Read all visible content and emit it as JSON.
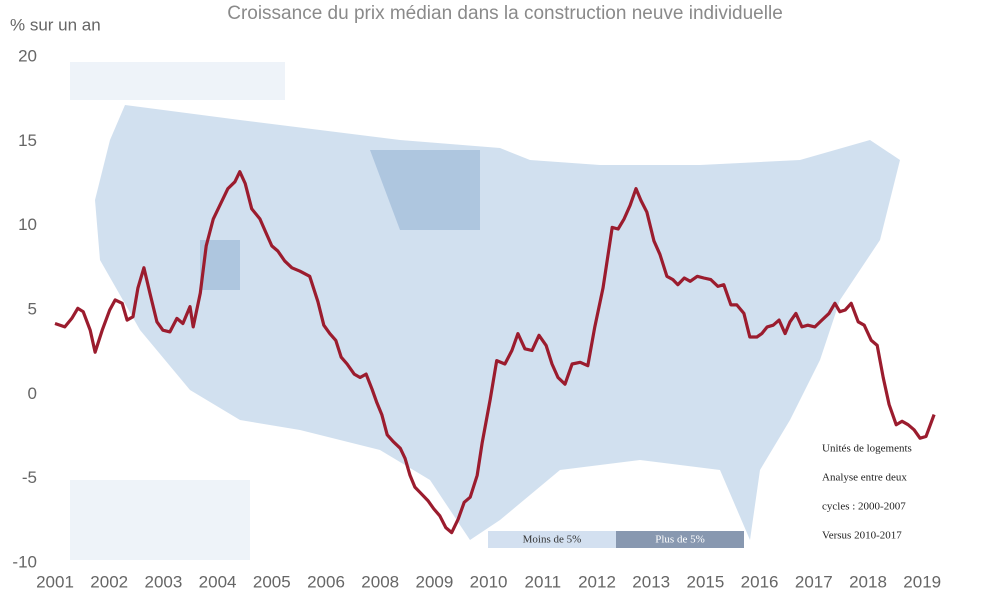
{
  "chart_data": {
    "type": "line",
    "title": "Croissance du prix médian dans la construction neuve individuelle",
    "y_label": "% sur un an",
    "xlim": [
      0,
      16.4
    ],
    "xticks": [
      {
        "value": 0,
        "label": "2001"
      },
      {
        "value": 1,
        "label": "2002"
      },
      {
        "value": 2,
        "label": "2003"
      },
      {
        "value": 3,
        "label": "2004"
      },
      {
        "value": 4,
        "label": "2005"
      },
      {
        "value": 5,
        "label": "2006"
      },
      {
        "value": 6,
        "label": "2008"
      },
      {
        "value": 7,
        "label": "2009"
      },
      {
        "value": 8,
        "label": "2010"
      },
      {
        "value": 9,
        "label": "2011"
      },
      {
        "value": 10,
        "label": "2012"
      },
      {
        "value": 11,
        "label": "2013"
      },
      {
        "value": 12,
        "label": "2015"
      },
      {
        "value": 13,
        "label": "2016"
      },
      {
        "value": 14,
        "label": "2017"
      },
      {
        "value": 15,
        "label": "2018"
      },
      {
        "value": 16,
        "label": "2019"
      }
    ],
    "ylim": [
      -10,
      20
    ],
    "yticks": [
      -10,
      -5,
      0,
      5,
      10,
      15,
      20
    ],
    "x": [
      0,
      0.18,
      0.31,
      0.42,
      0.52,
      0.65,
      0.74,
      0.87,
      1.01,
      1.11,
      1.24,
      1.33,
      1.44,
      1.53,
      1.64,
      1.75,
      1.88,
      1.99,
      2.12,
      2.25,
      2.36,
      2.49,
      2.55,
      2.68,
      2.79,
      2.92,
      3.04,
      3.19,
      3.32,
      3.41,
      3.51,
      3.63,
      3.78,
      3.89,
      4.0,
      4.11,
      4.24,
      4.37,
      4.52,
      4.7,
      4.85,
      4.96,
      5.07,
      5.18,
      5.28,
      5.39,
      5.52,
      5.63,
      5.74,
      5.85,
      5.94,
      6.03,
      6.13,
      6.24,
      6.37,
      6.46,
      6.55,
      6.64,
      6.73,
      6.88,
      6.99,
      7.1,
      7.21,
      7.32,
      7.44,
      7.55,
      7.66,
      7.79,
      7.88,
      8.03,
      8.15,
      8.3,
      8.43,
      8.54,
      8.67,
      8.8,
      8.93,
      9.06,
      9.17,
      9.28,
      9.41,
      9.54,
      9.69,
      9.83,
      9.96,
      10.11,
      10.28,
      10.39,
      10.5,
      10.61,
      10.72,
      10.81,
      10.92,
      11.05,
      11.16,
      11.29,
      11.4,
      11.49,
      11.61,
      11.72,
      11.85,
      11.97,
      12.1,
      12.23,
      12.34,
      12.47,
      12.58,
      12.71,
      12.82,
      12.95,
      13.04,
      13.14,
      13.25,
      13.36,
      13.47,
      13.56,
      13.67,
      13.78,
      13.89,
      14.02,
      14.15,
      14.28,
      14.39,
      14.48,
      14.58,
      14.69,
      14.82,
      14.93,
      15.06,
      15.17,
      15.28,
      15.39,
      15.52,
      15.63,
      15.74,
      15.85,
      15.96,
      16.07,
      16.22
    ],
    "series": [
      {
        "name": "Croissance du prix médian",
        "color": "#9b1c2e",
        "values": [
          4.2,
          4.0,
          4.5,
          5.1,
          4.9,
          3.8,
          2.5,
          3.8,
          5.0,
          5.6,
          5.4,
          4.4,
          4.6,
          6.3,
          7.5,
          6.0,
          4.3,
          3.8,
          3.7,
          4.5,
          4.2,
          5.2,
          4.0,
          6.0,
          8.8,
          10.4,
          11.2,
          12.2,
          12.6,
          13.2,
          12.5,
          11.0,
          10.4,
          9.6,
          8.8,
          8.5,
          7.9,
          7.5,
          7.3,
          7.0,
          5.5,
          4.1,
          3.6,
          3.2,
          2.2,
          1.8,
          1.2,
          1.0,
          1.2,
          0.3,
          -0.5,
          -1.2,
          -2.4,
          -2.8,
          -3.2,
          -3.8,
          -4.8,
          -5.5,
          -5.8,
          -6.3,
          -6.8,
          -7.2,
          -7.9,
          -8.2,
          -7.4,
          -6.4,
          -6.1,
          -4.8,
          -2.9,
          -0.3,
          2.0,
          1.8,
          2.6,
          3.6,
          2.7,
          2.6,
          3.5,
          2.9,
          1.8,
          1.0,
          0.6,
          1.8,
          1.9,
          1.7,
          4.0,
          6.3,
          9.9,
          9.8,
          10.4,
          11.2,
          12.2,
          11.5,
          10.8,
          9.1,
          8.3,
          7.0,
          6.8,
          6.5,
          6.9,
          6.7,
          7.0,
          6.9,
          6.8,
          6.4,
          6.5,
          5.3,
          5.3,
          4.8,
          3.4,
          3.4,
          3.6,
          4.0,
          4.1,
          4.4,
          3.6,
          4.3,
          4.8,
          4.0,
          4.1,
          4.0,
          4.4,
          4.8,
          5.4,
          4.9,
          5.0,
          5.4,
          4.3,
          4.1,
          3.2,
          2.9,
          1.0,
          -0.6,
          -1.8,
          -1.6,
          -1.8,
          -2.1,
          -2.6,
          -2.5,
          -1.2
        ]
      }
    ],
    "annotations": [
      "Unités de logements",
      "Analyse entre deux",
      "cycles : 2000-2007",
      "Versus 2010-2017"
    ],
    "map_legend": [
      {
        "label": "Moins de 5%",
        "color": "#d3e0f0"
      },
      {
        "label": "Plus de 5%",
        "color": "#8898b0"
      }
    ]
  }
}
